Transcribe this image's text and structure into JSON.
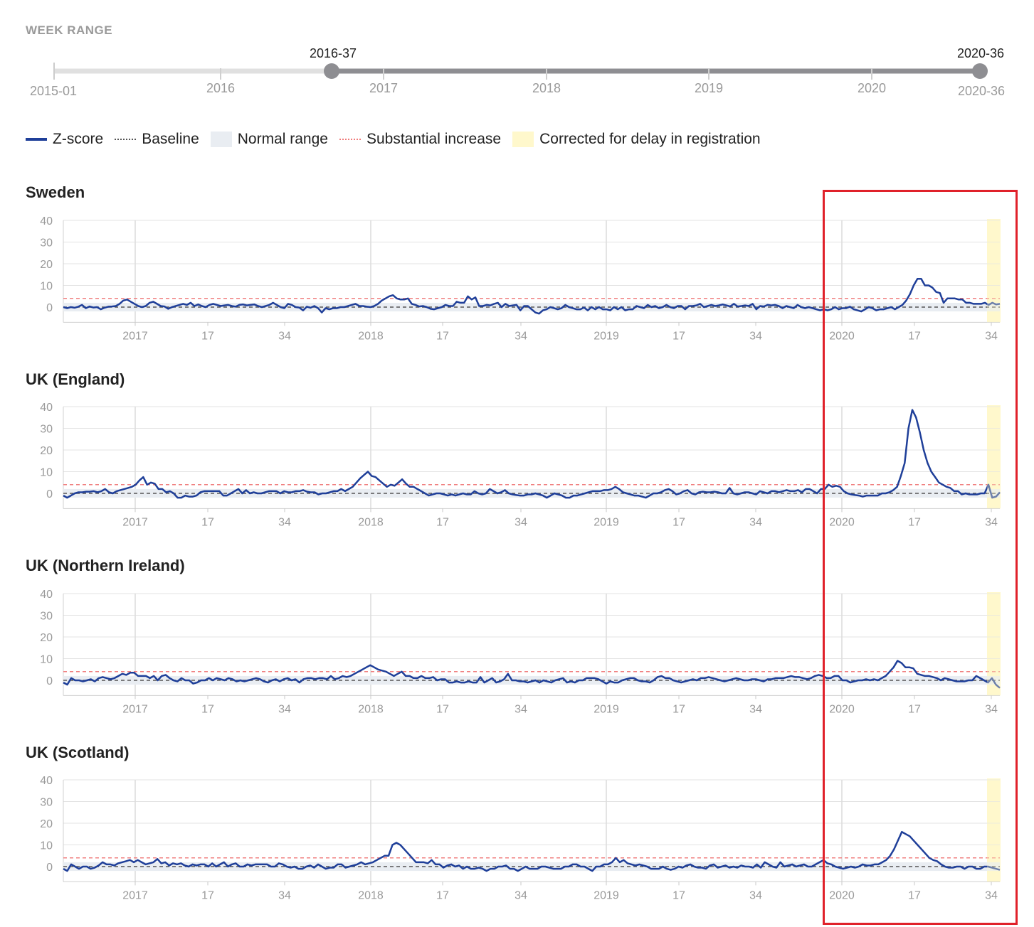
{
  "week_range": {
    "title": "WEEK RANGE",
    "start_label": "2015-01",
    "end_label": "2020-36",
    "selected_start": "2016-37",
    "selected_end": "2020-36",
    "year_ticks": [
      "2016",
      "2017",
      "2018",
      "2019",
      "2020"
    ]
  },
  "legend": [
    {
      "label": "Z-score",
      "swatch": "z"
    },
    {
      "label": "Baseline",
      "swatch": "base"
    },
    {
      "label": "Normal range",
      "swatch": "norm"
    },
    {
      "label": "Substantial increase",
      "swatch": "sub"
    },
    {
      "label": "Corrected for delay in registration",
      "swatch": "corr"
    }
  ],
  "colors": {
    "zscore": "#1f3f99",
    "baseline": "#555555",
    "normal_range": "#e9edf2",
    "substantial": "#f08080",
    "corrected": "#fff8cc",
    "highlight": "#e0212a"
  },
  "chart_data": [
    {
      "type": "line",
      "title": "Sweden",
      "x_tick_labels": [
        "2017",
        "17",
        "34",
        "2018",
        "17",
        "34",
        "2019",
        "17",
        "34",
        "2020",
        "17",
        "34"
      ],
      "y_ticks": [
        0,
        10,
        20,
        30,
        40
      ],
      "ylim": [
        -7,
        40
      ],
      "baseline": 0,
      "normal_range": [
        -2,
        2
      ],
      "substantial_increase": 4,
      "corrected_weeks": "2020-33 to 2020-36",
      "series": [
        {
          "values": [
            0,
            -0.5,
            0,
            -0.3,
            0.2,
            1,
            -0.5,
            0.3,
            -0.2,
            0,
            -1,
            -0.3,
            0.2,
            0.3,
            0.5,
            1.5,
            3,
            3.5,
            2.5,
            1.5,
            0.5,
            0,
            0.5,
            2,
            2.5,
            1.5,
            0.5,
            0.3,
            -0.8,
            0,
            0.5,
            1,
            1.5,
            1,
            2,
            0.5,
            1.2,
            0.5,
            0,
            1,
            1.5,
            1,
            0.5,
            0.8,
            1,
            0.5,
            0.2,
            1,
            1.2,
            0.8,
            1,
            1.2,
            0.5,
            0,
            0.5,
            1,
            2,
            1,
            0,
            -0.5,
            1.5,
            1,
            0,
            -0.2,
            -1.5,
            0.2,
            -0.3,
            0.5,
            -0.5,
            -2.5,
            -0.5,
            -1,
            -0.5,
            -0.5,
            0,
            0,
            0.5,
            1,
            1.5,
            0.5,
            0.5,
            0.2,
            0,
            0.5,
            1.5,
            3,
            4,
            5,
            5.5,
            4,
            3.5,
            3.5,
            4,
            1.5,
            1,
            0.3,
            0.5,
            0,
            -0.8,
            -1,
            -0.5,
            0,
            1,
            0.5,
            0.5,
            2.5,
            2,
            2,
            5,
            3.5,
            4.5,
            0.5,
            0.5,
            1,
            0.8,
            1.5,
            2,
            0,
            1.5,
            0.5,
            0.8,
            1,
            -1.5,
            0.5,
            0.5,
            -1,
            -2.5,
            -3,
            -1.5,
            -1,
            0,
            -0.5,
            -1,
            -0.5,
            1,
            0,
            -0.5,
            -1,
            -1,
            -0.2,
            -1.5,
            0,
            -1,
            0,
            -1,
            -1,
            -1.5,
            0,
            -1,
            0,
            -1.5,
            -1,
            -1,
            0.5,
            0,
            -0.5,
            1,
            0,
            0.5,
            -0.5,
            0,
            1,
            0,
            -0.5,
            0.5,
            0.5,
            -1,
            0.5,
            0.5,
            0.8,
            1.5,
            0,
            0.5,
            1,
            0.5,
            0.8,
            1.2,
            0.8,
            0.3,
            1.5,
            0.3,
            0.5,
            0.8,
            0.5,
            1.5,
            -1,
            0.5,
            0.3,
            1,
            0.8,
            1,
            0.5,
            -0.5,
            0.5,
            0,
            -0.5,
            1,
            0,
            -0.5,
            0,
            -0.5,
            -1,
            -1.5,
            -1,
            -1.5,
            -1,
            0,
            -1,
            -0.5,
            -0.5,
            0.2,
            -1,
            -1.5,
            -2,
            -1,
            0,
            -0.5,
            -1.5,
            -1,
            -1,
            -0.5,
            0,
            -1,
            0,
            1,
            3,
            6,
            10,
            13,
            13,
            10,
            10,
            9,
            7,
            6.5,
            2,
            4,
            4,
            4,
            3.5,
            3.5,
            2,
            2,
            1.5,
            1.5,
            1.5,
            2,
            1,
            2,
            1.2,
            1.5
          ]
        }
      ]
    },
    {
      "type": "line",
      "title": "UK (England)",
      "x_tick_labels": [
        "2017",
        "17",
        "34",
        "2018",
        "17",
        "34",
        "2019",
        "17",
        "34",
        "2020",
        "17",
        "34"
      ],
      "y_ticks": [
        0,
        10,
        20,
        30,
        40
      ],
      "ylim": [
        -7,
        40
      ],
      "baseline": 0,
      "normal_range": [
        -2,
        2
      ],
      "substantial_increase": 4,
      "corrected_weeks": "2020-33 to 2020-36",
      "series": [
        {
          "values": [
            -1,
            -2,
            -1,
            0,
            0.5,
            0.5,
            0.8,
            0.8,
            1,
            0.5,
            1,
            2,
            0.5,
            0,
            1,
            1.5,
            2,
            2.5,
            3,
            4,
            6,
            7.5,
            4,
            5,
            4.5,
            2,
            2,
            0.5,
            1,
            0,
            -2,
            -2,
            -1,
            -1.5,
            -1.5,
            -1,
            0.5,
            1,
            1,
            1,
            1,
            1,
            -1,
            -1,
            0,
            1,
            2,
            0,
            1.5,
            0,
            0.5,
            0,
            0,
            0.5,
            1,
            1,
            1,
            0,
            1,
            0.5,
            0.5,
            1,
            1,
            1.5,
            0.8,
            0.5,
            0.5,
            -0.5,
            0,
            0,
            0.5,
            1,
            1,
            2,
            1,
            2,
            3,
            5,
            7,
            8.5,
            10,
            8,
            7.5,
            6,
            4.5,
            3,
            4,
            3.5,
            5,
            6.5,
            4.5,
            3,
            3,
            2,
            1,
            0,
            -1,
            -0.5,
            0,
            0,
            -0.5,
            -1,
            -0.5,
            -1,
            -0.5,
            0,
            -0.5,
            -0.5,
            1,
            0,
            -0.5,
            0,
            2,
            1,
            0,
            0.5,
            1.5,
            0,
            -0.5,
            -0.8,
            -1,
            -1,
            -0.5,
            -0.5,
            0,
            -0.5,
            -1,
            -2,
            -1,
            0,
            -0.5,
            -1,
            -2,
            -2,
            -1,
            -1,
            -0.5,
            0,
            0.5,
            1,
            1,
            1,
            1.5,
            1.5,
            2,
            3,
            2,
            0.5,
            0,
            -0.5,
            -1,
            -1,
            -1.5,
            -2,
            -1,
            0,
            0,
            0.5,
            1.5,
            2,
            1,
            -0.5,
            0,
            1,
            1.5,
            0,
            -0.5,
            0.5,
            0.8,
            0.5,
            0.5,
            0.8,
            0.5,
            0,
            0,
            2.5,
            0,
            -0.5,
            0,
            0.5,
            0.5,
            0,
            -0.5,
            1,
            0.5,
            0,
            1,
            1,
            0.5,
            1,
            1.5,
            1,
            1,
            1.5,
            0.5,
            2,
            2,
            1,
            0,
            2,
            2,
            4,
            3,
            3.5,
            3,
            1,
            0,
            -0.5,
            -0.8,
            -1,
            -1.5,
            -1,
            -1,
            -1,
            -1,
            0,
            0,
            0.5,
            1.5,
            3,
            8,
            14,
            30,
            38.5,
            35,
            28,
            20,
            14,
            10,
            7.5,
            5,
            4,
            3,
            2.5,
            1,
            1,
            -0.5,
            0,
            -0.5,
            -0.5,
            -0.5,
            0,
            0,
            4,
            -2,
            -1.5,
            0.5
          ]
        }
      ]
    },
    {
      "type": "line",
      "title": "UK (Northern Ireland)",
      "x_tick_labels": [
        "2017",
        "17",
        "34",
        "2018",
        "17",
        "34",
        "2019",
        "17",
        "34",
        "2020",
        "17",
        "34"
      ],
      "y_ticks": [
        0,
        10,
        20,
        30,
        40
      ],
      "ylim": [
        -7,
        40
      ],
      "baseline": 0,
      "normal_range": [
        -2,
        2
      ],
      "substantial_increase": 4,
      "corrected_weeks": "2020-33 to 2020-36",
      "series": [
        {
          "values": [
            -1,
            -2,
            1,
            0,
            0,
            -0.5,
            0,
            0.5,
            -0.5,
            1,
            1.5,
            1,
            0.5,
            1,
            2,
            3,
            2.5,
            3.5,
            3.5,
            2,
            2,
            2,
            1,
            2,
            0,
            2,
            2.5,
            1,
            0,
            -0.5,
            1,
            0,
            0,
            -1.5,
            -1,
            0,
            0,
            1,
            0,
            1,
            0.5,
            0,
            1,
            0.5,
            -0.5,
            0,
            -0.5,
            0,
            0.5,
            1,
            0.5,
            -0.5,
            -1,
            0,
            0.5,
            -0.5,
            0.5,
            1,
            0,
            0.5,
            -1,
            0.5,
            1,
            1,
            0.5,
            1,
            1,
            0.5,
            2,
            0.5,
            1,
            2,
            1.5,
            2,
            3,
            4,
            5,
            6,
            7,
            6,
            5,
            4.5,
            4,
            3,
            2,
            3,
            4,
            2,
            2,
            1,
            1,
            2,
            1,
            1,
            1.5,
            0,
            0.5,
            0.5,
            -1,
            -1,
            -0.5,
            -1,
            -1,
            -0.5,
            -1,
            -1,
            1.5,
            -1,
            0,
            1,
            -1,
            -0.5,
            0.5,
            3,
            0,
            0,
            -0.5,
            -0.5,
            -1,
            -0.5,
            0,
            -1,
            0,
            -0.5,
            -1,
            0,
            0.5,
            1,
            -1,
            -0.5,
            -1,
            0,
            0,
            1,
            1,
            1,
            0.5,
            -0.5,
            -1.5,
            -0.5,
            -1,
            -1,
            0,
            0.5,
            1,
            1,
            0,
            -0.5,
            -0.5,
            -1,
            0,
            1.5,
            2,
            1,
            1,
            0,
            -0.5,
            -1,
            -0.5,
            0,
            0.5,
            0,
            1,
            1,
            1.5,
            1,
            0.5,
            0,
            -0.5,
            0,
            0.5,
            1,
            0.5,
            0,
            0,
            0.5,
            0.5,
            0,
            -0.5,
            0.5,
            0.5,
            1,
            1,
            1,
            1.5,
            2,
            1.5,
            1.5,
            1,
            0.5,
            1,
            2,
            2.5,
            2,
            1,
            1,
            2,
            2,
            0,
            0,
            -1,
            -0.5,
            0,
            0,
            0.5,
            0,
            0.5,
            0,
            1,
            2,
            4,
            6,
            9,
            8,
            6,
            6,
            5.5,
            3,
            2.5,
            2,
            2,
            1.5,
            1,
            0,
            1,
            0.5,
            0,
            -0.5,
            -0.5,
            -0.5,
            0,
            0,
            2,
            1,
            0,
            -1,
            1,
            -2,
            -3.5
          ]
        }
      ]
    },
    {
      "type": "line",
      "title": "UK (Scotland)",
      "x_tick_labels": [
        "2017",
        "17",
        "34",
        "2018",
        "17",
        "34",
        "2019",
        "17",
        "34",
        "2020",
        "17",
        "34"
      ],
      "y_ticks": [
        0,
        10,
        20,
        30,
        40
      ],
      "ylim": [
        -7,
        40
      ],
      "baseline": 0,
      "normal_range": [
        -2,
        2
      ],
      "substantial_increase": 4,
      "corrected_weeks": "2020-33 to 2020-36",
      "series": [
        {
          "values": [
            -1,
            -2,
            1,
            0,
            -1,
            0,
            0,
            -1,
            -0.5,
            0.5,
            2,
            1,
            1,
            0.5,
            1.5,
            2,
            2.5,
            3,
            2,
            3,
            2,
            1,
            1.5,
            2,
            3.5,
            1.5,
            2,
            0.5,
            1.5,
            1,
            1.5,
            0.5,
            0,
            1,
            0.5,
            1,
            1,
            0,
            1.5,
            0,
            1,
            2,
            0,
            1,
            1.5,
            0,
            0,
            1,
            0.5,
            1,
            1,
            1,
            1,
            0,
            0,
            1.5,
            1,
            0,
            -0.5,
            0,
            -1,
            -1,
            0,
            0.5,
            -0.5,
            1,
            0,
            -1,
            -0.5,
            -0.5,
            1,
            1,
            -0.5,
            0,
            0.5,
            1,
            2,
            1,
            1.5,
            2,
            3,
            4,
            5,
            5,
            10,
            11,
            10,
            8,
            6,
            4,
            2,
            2,
            2,
            1.5,
            3,
            1,
            1,
            -0.5,
            0.5,
            1,
            0,
            0.5,
            -1,
            0,
            -1,
            -1,
            -0.5,
            -1,
            -2,
            -1,
            -1,
            0,
            0,
            0.5,
            -1,
            -1,
            -2,
            -1,
            0,
            -1,
            -1,
            -1,
            0,
            0,
            -0.5,
            -1,
            -1,
            -1,
            0,
            0,
            1,
            1,
            0,
            0,
            -1,
            -2,
            0,
            0,
            1,
            1,
            2,
            4,
            2,
            3,
            1.5,
            1,
            0.5,
            1,
            0.5,
            0,
            -1,
            -1,
            -1,
            0,
            -1,
            -1.5,
            -1,
            0,
            -0.5,
            0.5,
            1,
            0,
            -0.5,
            -0.5,
            -1,
            0.5,
            1,
            -0.5,
            0,
            0.5,
            -0.5,
            0,
            -0.5,
            0.5,
            0,
            0,
            -0.5,
            1,
            -0.5,
            2,
            1,
            0,
            -0.5,
            2,
            0,
            0.5,
            1,
            0,
            0.5,
            1,
            0,
            0,
            1,
            2,
            3,
            1.5,
            1,
            0,
            -0.5,
            -1,
            -0.5,
            0,
            -0.5,
            0,
            1,
            0.5,
            0.5,
            1,
            1,
            2,
            3,
            5,
            8,
            12,
            16,
            15,
            14,
            12,
            10,
            8,
            6,
            4,
            3,
            2.5,
            1,
            0,
            -0.5,
            -0.5,
            0,
            0,
            -1,
            0,
            0,
            -1,
            -1,
            0,
            0,
            -0.5,
            -1,
            -1.5
          ]
        }
      ]
    }
  ]
}
